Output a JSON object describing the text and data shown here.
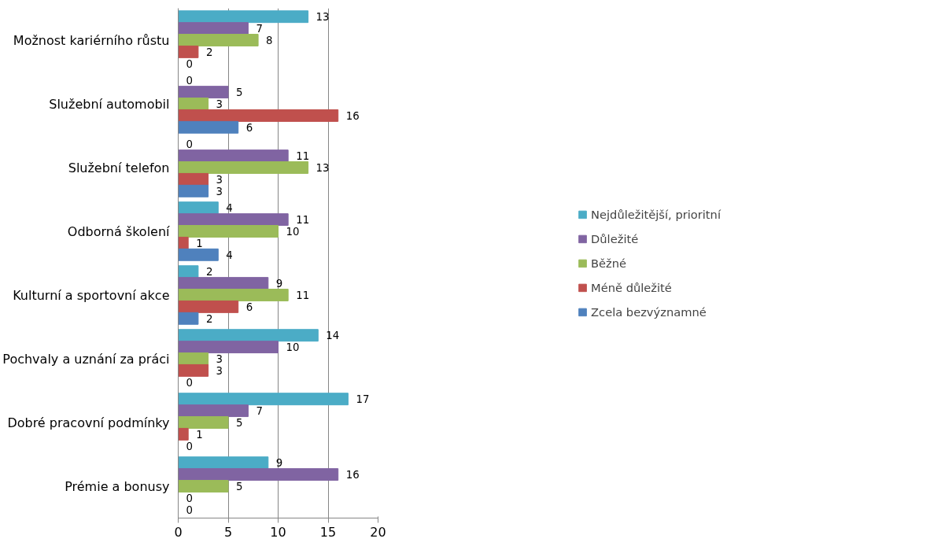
{
  "chart_data": {
    "type": "bar",
    "orientation": "horizontal",
    "categories": [
      "Možnost kariérního růstu",
      "Služební automobil",
      "Služební telefon",
      "Odborná školení",
      "Kulturní a sportovní akce",
      "Pochvaly a uznání za práci",
      "Dobré pracovní podmínky",
      "Prémie a bonusy"
    ],
    "series": [
      {
        "name": "Nejdůležitější, prioritní",
        "color": "#4bacc6",
        "values": [
          13,
          0,
          0,
          4,
          2,
          14,
          17,
          9
        ]
      },
      {
        "name": "Důležité",
        "color": "#8064a2",
        "values": [
          7,
          5,
          11,
          11,
          9,
          10,
          7,
          16
        ]
      },
      {
        "name": "Běžné",
        "color": "#9bbb59",
        "values": [
          8,
          3,
          13,
          10,
          11,
          3,
          5,
          5
        ]
      },
      {
        "name": "Méně důležité",
        "color": "#c0504d",
        "values": [
          2,
          16,
          3,
          1,
          6,
          3,
          1,
          0
        ]
      },
      {
        "name": "Zcela bezvýznamné",
        "color": "#4f81bd",
        "values": [
          0,
          6,
          3,
          4,
          2,
          0,
          0,
          0
        ]
      }
    ],
    "xlim": [
      0,
      20
    ],
    "xticks": [
      0,
      5,
      10,
      15,
      20
    ],
    "grid": "x",
    "legend": "right",
    "data_labels": true
  }
}
